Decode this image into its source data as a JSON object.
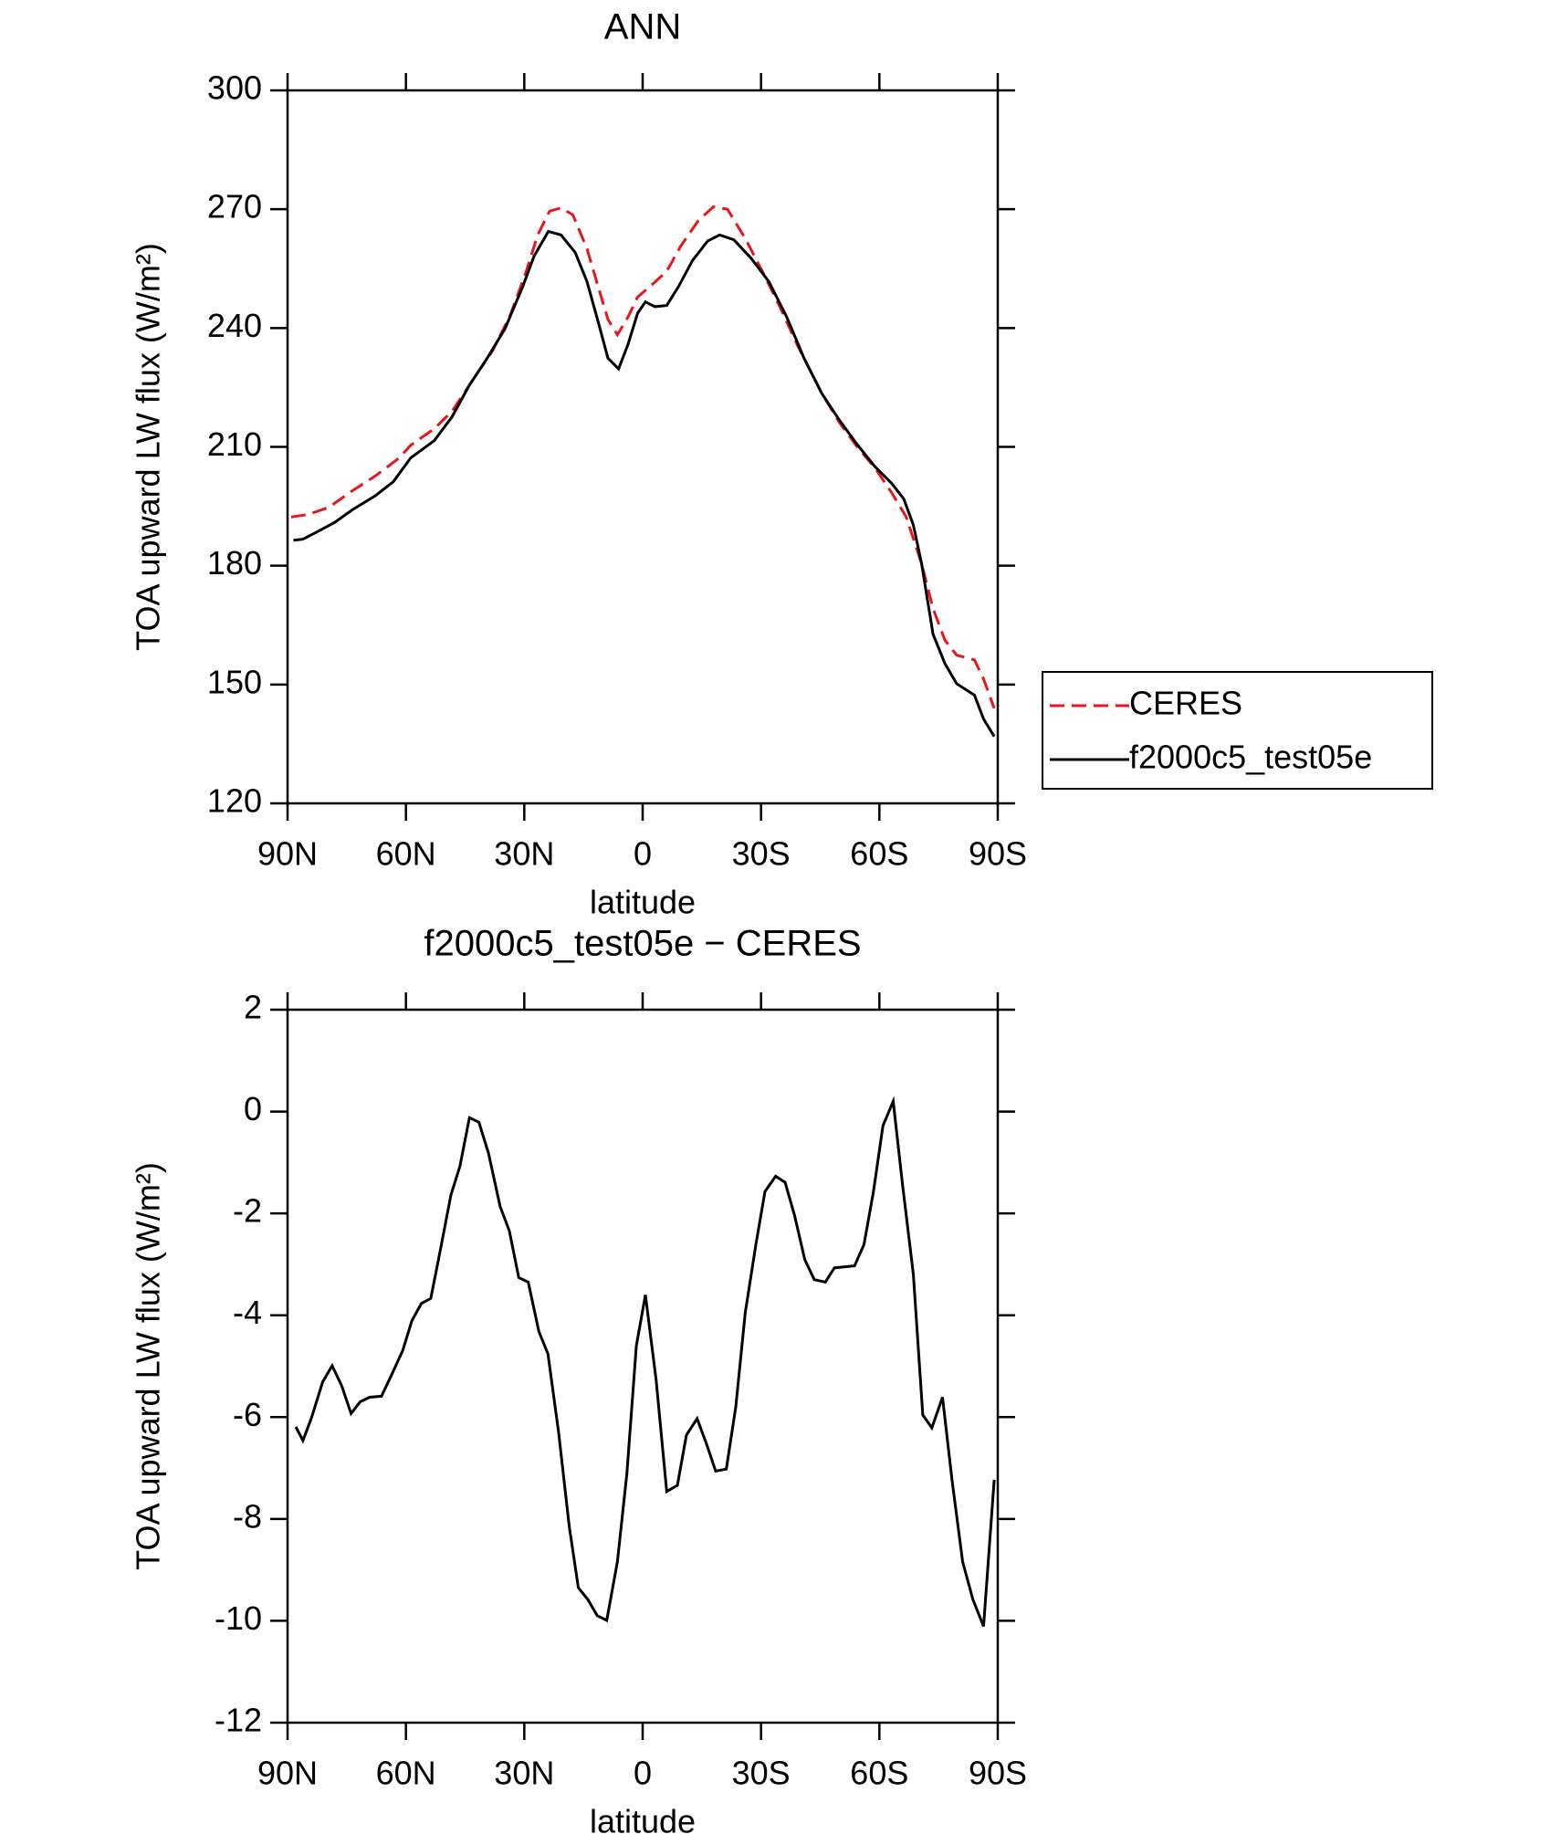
{
  "chart_data": [
    {
      "type": "line",
      "title": "ANN",
      "xlabel": "latitude",
      "ylabel": "TOA upward LW flux (W/m²)",
      "xlim": [
        90,
        -90
      ],
      "xticks": [
        {
          "value": 90,
          "label": "90N"
        },
        {
          "value": 60,
          "label": "60N"
        },
        {
          "value": 30,
          "label": "30N"
        },
        0,
        {
          "value": -30,
          "label": "30S"
        },
        {
          "value": -60,
          "label": "60S"
        },
        {
          "value": -90,
          "label": "90S"
        }
      ],
      "ylim": [
        120,
        300
      ],
      "yticks": [
        120,
        150,
        180,
        210,
        240,
        270,
        300
      ],
      "legend": "right",
      "series": [
        {
          "name": "CERES",
          "color": "#e8161a",
          "dash": true,
          "x": [
            89.1,
            84.9,
            79.6,
            73.6,
            67.7,
            61.7,
            58.8,
            52.8,
            48.3,
            43.9,
            37.9,
            33.5,
            29.6,
            26.6,
            23.6,
            20.7,
            17.7,
            14.1,
            11.2,
            8.8,
            6.4,
            3.7,
            1.3,
            -2.2,
            -6.1,
            -9.6,
            -14.1,
            -17.9,
            -21.5,
            -26.0,
            -30.5,
            -34.9,
            -39.4,
            -45.4,
            -49.9,
            -54.3,
            -58.8,
            -63.2,
            -66.8,
            -70.7,
            -73.6,
            -76.6,
            -79.6,
            -84.1,
            -86.4,
            -89.1
          ],
          "values": [
            192.3,
            192.9,
            194.7,
            198.9,
            202.7,
            207.2,
            210.4,
            214.6,
            219.0,
            225.6,
            234.5,
            243.4,
            254.0,
            263.5,
            269.5,
            270.3,
            268.6,
            260.0,
            250.2,
            242.2,
            238.3,
            242.8,
            247.8,
            250.8,
            254.3,
            260.6,
            267.1,
            270.6,
            270.0,
            262.6,
            254.0,
            245.1,
            235.3,
            223.5,
            216.1,
            210.1,
            204.8,
            198.3,
            192.3,
            180.5,
            169.2,
            161.2,
            157.4,
            156.2,
            151.4,
            144.0
          ]
        },
        {
          "name": "f2000c5_test05e",
          "color": "#000000",
          "dash": false,
          "x": [
            88.5,
            86.1,
            82.6,
            78.1,
            73.6,
            67.7,
            63.2,
            58.8,
            52.8,
            48.3,
            43.9,
            39.4,
            34.9,
            30.5,
            27.5,
            23.9,
            20.7,
            17.1,
            14.1,
            11.2,
            8.8,
            6.1,
            3.7,
            1.3,
            -0.7,
            -3.1,
            -6.1,
            -9.1,
            -12.6,
            -16.5,
            -19.5,
            -23.1,
            -27.5,
            -32.0,
            -36.5,
            -40.9,
            -45.4,
            -49.9,
            -54.3,
            -58.8,
            -63.2,
            -66.2,
            -68.6,
            -70.7,
            -73.6,
            -76.6,
            -79.6,
            -84.1,
            -86.4,
            -89.1
          ],
          "values": [
            186.4,
            186.7,
            188.5,
            190.9,
            194.1,
            197.7,
            201.2,
            207.2,
            211.6,
            217.6,
            225.6,
            232.4,
            239.8,
            250.2,
            258.2,
            264.4,
            263.5,
            259.1,
            251.7,
            241.3,
            232.4,
            229.7,
            235.9,
            243.7,
            246.6,
            245.4,
            245.7,
            250.5,
            257.0,
            262.0,
            263.5,
            262.3,
            257.6,
            251.7,
            242.8,
            232.4,
            223.5,
            216.7,
            210.7,
            205.1,
            200.7,
            196.8,
            190.3,
            180.5,
            162.7,
            155.3,
            150.2,
            147.3,
            141.3,
            136.9
          ]
        }
      ]
    },
    {
      "type": "line",
      "title": "f2000c5_test05e − CERES",
      "xlabel": "latitude",
      "ylabel": "TOA upward LW flux (W/m²)",
      "xlim": [
        90,
        -90
      ],
      "xticks": [
        {
          "value": 90,
          "label": "90N"
        },
        {
          "value": 60,
          "label": "60N"
        },
        {
          "value": 30,
          "label": "30N"
        },
        0,
        {
          "value": -30,
          "label": "30S"
        },
        {
          "value": -60,
          "label": "60S"
        },
        {
          "value": -90,
          "label": "90S"
        }
      ],
      "ylim": [
        -12,
        2
      ],
      "yticks": [
        -12,
        -10,
        -8,
        -6,
        -4,
        -2,
        0,
        2
      ],
      "series": [
        {
          "color": "#000000",
          "dash": false,
          "x": [
            87.9,
            86.1,
            84.0,
            81.1,
            78.7,
            76.3,
            73.9,
            71.6,
            69.2,
            66.2,
            63.8,
            60.8,
            58.5,
            56.1,
            53.7,
            51.3,
            48.6,
            46.3,
            43.9,
            41.5,
            39.1,
            36.1,
            33.8,
            31.4,
            29.0,
            26.3,
            24.0,
            21.3,
            18.6,
            16.3,
            13.9,
            11.5,
            9.1,
            6.4,
            4.0,
            1.6,
            -0.7,
            -3.4,
            -6.1,
            -8.8,
            -11.1,
            -13.8,
            -16.2,
            -18.5,
            -21.2,
            -23.6,
            -26.0,
            -28.7,
            -31.0,
            -33.7,
            -36.1,
            -38.5,
            -41.1,
            -43.5,
            -46.3,
            -48.6,
            -51.0,
            -53.7,
            -56.1,
            -58.5,
            -60.9,
            -63.5,
            -65.9,
            -68.6,
            -71.0,
            -73.3,
            -76.0,
            -78.4,
            -81.1,
            -83.7,
            -86.4,
            -89.1
          ],
          "values": [
            -6.19,
            -6.46,
            -6.03,
            -5.31,
            -4.99,
            -5.38,
            -5.93,
            -5.7,
            -5.61,
            -5.59,
            -5.2,
            -4.69,
            -4.11,
            -3.77,
            -3.67,
            -2.73,
            -1.64,
            -1.07,
            -0.12,
            -0.21,
            -0.81,
            -1.87,
            -2.34,
            -3.26,
            -3.35,
            -4.32,
            -4.76,
            -6.3,
            -8.15,
            -9.35,
            -9.58,
            -9.9,
            -9.99,
            -8.84,
            -7.11,
            -4.6,
            -3.6,
            -5.26,
            -7.46,
            -7.34,
            -6.35,
            -6.03,
            -6.53,
            -7.06,
            -7.02,
            -5.8,
            -3.95,
            -2.61,
            -1.57,
            -1.27,
            -1.39,
            -2.04,
            -2.91,
            -3.3,
            -3.35,
            -3.07,
            -3.05,
            -3.03,
            -2.61,
            -1.57,
            -0.28,
            0.2,
            -1.46,
            -3.19,
            -5.96,
            -6.21,
            -5.61,
            -7.23,
            -8.84,
            -9.58,
            -10.11,
            -7.23
          ]
        }
      ]
    }
  ]
}
